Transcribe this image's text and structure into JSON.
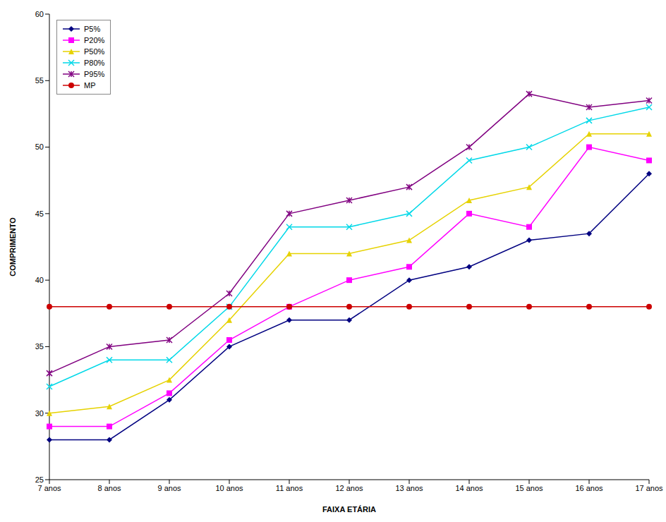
{
  "chart_data": {
    "type": "line",
    "x_label": "FAIXA ETÁRIA",
    "y_label": "COMPRIMENTO",
    "categories": [
      "7 anos",
      "8 anos",
      "9 anos",
      "10 anos",
      "11 anos",
      "12 anos",
      "13 anos",
      "14 anos",
      "15 anos",
      "16 anos",
      "17 anos"
    ],
    "ylim": [
      25,
      60
    ],
    "yticks": [
      25,
      30,
      35,
      40,
      45,
      50,
      55,
      60
    ],
    "grid": false,
    "legend": "upper left",
    "series": [
      {
        "name": "P5%",
        "color": "#000080",
        "marker": "diamond",
        "values": [
          28,
          28,
          31,
          35,
          37,
          37,
          40,
          41,
          43,
          43.5,
          48
        ]
      },
      {
        "name": "P20%",
        "color": "#ff00ff",
        "marker": "square",
        "values": [
          29,
          29,
          31.5,
          35.5,
          38,
          40,
          41,
          45,
          44,
          50,
          49
        ]
      },
      {
        "name": "P50%",
        "color": "#e6d200",
        "marker": "triangle",
        "values": [
          30,
          30.5,
          32.5,
          37,
          42,
          42,
          43,
          46,
          47,
          51,
          51
        ]
      },
      {
        "name": "P80%",
        "color": "#00d8e8",
        "marker": "x",
        "values": [
          32,
          34,
          34,
          38,
          44,
          44,
          45,
          49,
          50,
          52,
          53
        ]
      },
      {
        "name": "P95%",
        "color": "#800080",
        "marker": "star",
        "values": [
          33,
          35,
          35.5,
          39,
          45,
          46,
          47,
          50,
          54,
          53,
          53.5
        ]
      },
      {
        "name": "MP",
        "color": "#cc0000",
        "marker": "circle",
        "values": [
          38,
          38,
          38,
          38,
          38,
          38,
          38,
          38,
          38,
          38,
          38
        ]
      }
    ]
  }
}
